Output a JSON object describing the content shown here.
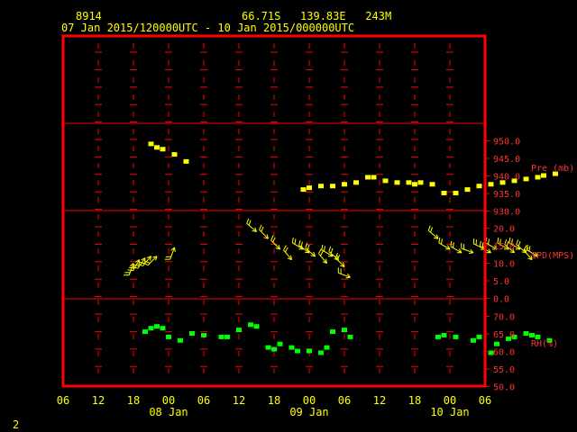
{
  "header": {
    "station_id": "8914",
    "location": "66.71S   139.83E   243M",
    "time_range": "07 Jan 2015/120000UTC - 10 Jan 2015/000000UTC"
  },
  "footer_mark": "2",
  "colors": {
    "frame": "#ff0000",
    "header_text": "#ffff00",
    "axis_text": "#ffff00",
    "panel_label": "#ff3333",
    "pressure": "#ffff00",
    "wind": "#ffff00",
    "rh": "#00ff00"
  },
  "chart_data": [
    {
      "type": "scatter",
      "panel": "pressure",
      "ylabel": "Pre (mb)",
      "yticks": [
        "950.0",
        "945.0",
        "940.0",
        "935.0",
        "930.0"
      ],
      "ylim": [
        930,
        955
      ],
      "x_unit": "hours since 07 Jan 2015 06 UTC",
      "x": [
        15,
        16,
        17,
        19,
        21,
        41,
        42,
        44,
        46,
        48,
        50,
        52,
        53,
        55,
        57,
        59,
        60,
        61,
        63,
        65,
        67,
        69,
        71,
        73,
        75,
        77,
        79,
        81,
        82,
        84
      ],
      "y": [
        949,
        948,
        947.5,
        946,
        944,
        936,
        936.5,
        937,
        937,
        937.5,
        938,
        939.5,
        939.5,
        938.5,
        938,
        938,
        937.5,
        938,
        937.5,
        935,
        935,
        936,
        937,
        937.5,
        938,
        938.5,
        939,
        939.5,
        940,
        940.5
      ]
    },
    {
      "type": "scatter",
      "panel": "wind",
      "ylabel": "SPD(MPS)",
      "yticks": [
        "20.0",
        "15.0",
        "10.0",
        "5.0",
        "0.0"
      ],
      "ylim": [
        0,
        25
      ],
      "note": "wind barbs: value = speed (m/s), dir = compass direction wind comes from",
      "x": [
        12,
        13,
        14,
        15,
        16,
        19,
        33,
        35,
        37,
        39,
        41,
        42,
        43,
        45,
        46,
        47,
        48,
        49,
        64,
        66,
        68,
        70,
        72,
        73,
        74,
        76,
        77,
        78,
        79,
        80,
        81
      ],
      "y": [
        10,
        11,
        11.5,
        12,
        12,
        14.5,
        19,
        17,
        14,
        11,
        14,
        13,
        12,
        10,
        12,
        11,
        9,
        6,
        17,
        14,
        13,
        13,
        14,
        13,
        14,
        14,
        13,
        14,
        13,
        11,
        12
      ],
      "dir": [
        200,
        210,
        215,
        220,
        225,
        200,
        310,
        315,
        315,
        320,
        300,
        305,
        310,
        320,
        300,
        310,
        315,
        290,
        310,
        300,
        300,
        290,
        295,
        300,
        300,
        300,
        310,
        300,
        310,
        320,
        300
      ]
    },
    {
      "type": "scatter",
      "panel": "rh",
      "ylabel": "RH(%)",
      "yticks": [
        "70.0",
        "65.0",
        "60.0",
        "55.0",
        "50.0"
      ],
      "ylim": [
        50,
        75
      ],
      "x": [
        14,
        15,
        16,
        17,
        18,
        20,
        22,
        24,
        27,
        28,
        30,
        32,
        33,
        35,
        36,
        37,
        39,
        40,
        42,
        44,
        45,
        46,
        48,
        49,
        64,
        65,
        67,
        70,
        71,
        73,
        74,
        76,
        77,
        79,
        80,
        81,
        83
      ],
      "y": [
        65.5,
        66.5,
        67,
        66.5,
        64,
        63,
        65,
        64.5,
        64,
        64,
        66,
        67.5,
        67,
        61,
        60.5,
        62,
        61,
        60,
        60,
        59.5,
        61,
        65.5,
        66,
        64,
        64,
        64.5,
        64,
        63,
        64,
        59.5,
        62,
        63.5,
        64,
        65,
        64.5,
        64,
        63
      ]
    }
  ],
  "x_axis": {
    "ticks": [
      "06",
      "12",
      "18",
      "00",
      "06",
      "12",
      "18",
      "00",
      "06",
      "12",
      "18",
      "00",
      "06"
    ],
    "day_labels": [
      "08 Jan",
      "09 Jan",
      "10 Jan"
    ]
  }
}
